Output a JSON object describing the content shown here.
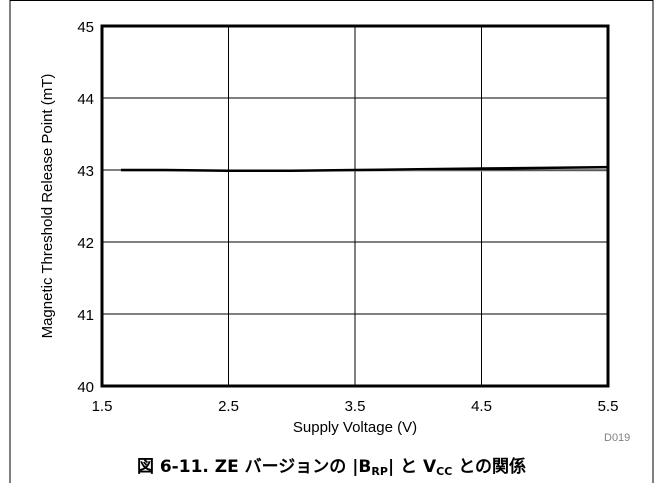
{
  "chart_data": {
    "type": "line",
    "xlabel": "Supply Voltage (V)",
    "ylabel": "Magnetic Threshold Release Point (mT)",
    "xlim": [
      1.5,
      5.5
    ],
    "ylim": [
      40,
      45
    ],
    "x_ticks": [
      "1.5",
      "2.5",
      "3.5",
      "4.5",
      "5.5"
    ],
    "y_ticks": [
      "40",
      "41",
      "42",
      "43",
      "44",
      "45"
    ],
    "grid": true,
    "series": [
      {
        "x": [
          1.65,
          2.0,
          2.5,
          3.0,
          3.5,
          4.0,
          4.5,
          5.0,
          5.5
        ],
        "y": [
          43.0,
          43.0,
          42.99,
          42.99,
          43.0,
          43.01,
          43.02,
          43.03,
          43.04
        ]
      }
    ],
    "figure_code": "D019"
  },
  "caption": {
    "prefix": "図 6-11. ZE バージョンの |B",
    "sub1": "RP",
    "middle": "| と V",
    "sub2": "CC",
    "suffix": " との関係"
  }
}
